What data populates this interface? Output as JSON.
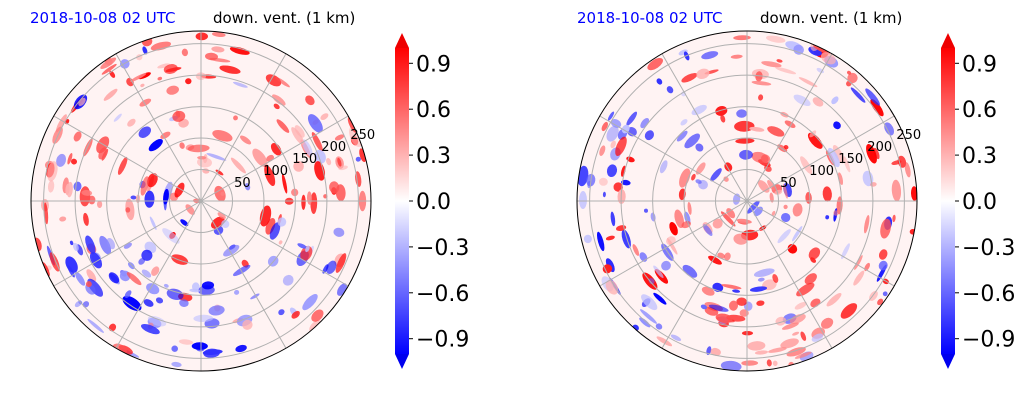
{
  "chart_data": [
    {
      "type": "heatmap",
      "projection": "polar",
      "title_left": "2018-10-08 02 UTC",
      "title_right": "down. vent. (1 km)",
      "radial_ticks": [
        50,
        100,
        150,
        200,
        250
      ],
      "radial_range": [
        0,
        250
      ],
      "grid": true,
      "colormap": "bwr",
      "colorbar": {
        "ticks": [
          0.9,
          0.6,
          0.3,
          0.0,
          -0.3,
          -0.6,
          -0.9
        ],
        "tick_labels": [
          "0.9",
          "0.6",
          "0.3",
          "0.0",
          "−0.3",
          "−0.6",
          "−0.9"
        ],
        "range": [
          -1.0,
          1.0
        ],
        "extend": "both"
      }
    },
    {
      "type": "heatmap",
      "projection": "polar",
      "title_left": "2018-10-08 02 UTC",
      "title_right": "down. vent. (1 km)",
      "radial_ticks": [
        50,
        100,
        150,
        200,
        250
      ],
      "radial_range": [
        0,
        250
      ],
      "grid": true,
      "colormap": "bwr",
      "colorbar": {
        "ticks": [
          0.9,
          0.6,
          0.3,
          0.0,
          -0.3,
          -0.6,
          -0.9
        ],
        "tick_labels": [
          "0.9",
          "0.6",
          "0.3",
          "0.0",
          "−0.3",
          "−0.6",
          "−0.9"
        ],
        "range": [
          -1.0,
          1.0
        ],
        "extend": "both"
      }
    }
  ],
  "colors": {
    "title_date": "#0000ff",
    "strong_positive": "#ff0000",
    "strong_negative": "#0000ff",
    "neutral": "#ffffff",
    "grid": "#b0b0b0"
  }
}
